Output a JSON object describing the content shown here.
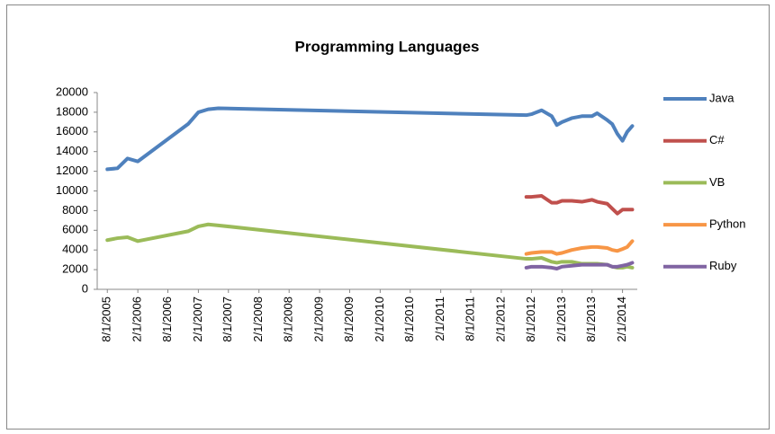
{
  "chart_data": {
    "type": "line",
    "title": "Programming Languages",
    "x": [
      "8/1/2005",
      "10/1/2005",
      "12/1/2005",
      "2/1/2006",
      "12/1/2006",
      "2/1/2007",
      "4/1/2007",
      "6/1/2007",
      "7/1/2012",
      "8/1/2012",
      "10/1/2012",
      "12/1/2012",
      "1/1/2013",
      "2/1/2013",
      "4/1/2013",
      "6/1/2013",
      "8/1/2013",
      "9/1/2013",
      "11/1/2013",
      "12/1/2013",
      "1/1/2014",
      "2/1/2014",
      "3/1/2014",
      "4/1/2014"
    ],
    "series": [
      {
        "name": "Java",
        "color": "#4f81bd",
        "values": [
          12200,
          12300,
          13300,
          13000,
          16800,
          18000,
          18300,
          18400,
          17700,
          17800,
          18200,
          17600,
          16700,
          17000,
          17400,
          17600,
          17600,
          17900,
          17200,
          16800,
          15800,
          15100,
          16000,
          16600
        ]
      },
      {
        "name": "C#",
        "color": "#c0504d",
        "values": [
          null,
          null,
          null,
          null,
          null,
          null,
          null,
          null,
          9400,
          9400,
          9500,
          8800,
          8800,
          9000,
          9000,
          8900,
          9100,
          8900,
          8700,
          8200,
          7700,
          8100,
          8100,
          8100
        ]
      },
      {
        "name": "VB",
        "color": "#9bbb59",
        "values": [
          5000,
          5200,
          5300,
          4900,
          5900,
          6400,
          6600,
          6500,
          3100,
          3100,
          3200,
          2800,
          2700,
          2800,
          2800,
          2600,
          2600,
          2600,
          2500,
          2300,
          2200,
          2200,
          2300,
          2200
        ]
      },
      {
        "name": "Python",
        "color": "#f79646",
        "values": [
          null,
          null,
          null,
          null,
          null,
          null,
          null,
          null,
          3600,
          3700,
          3800,
          3800,
          3600,
          3700,
          4000,
          4200,
          4300,
          4300,
          4200,
          4000,
          3900,
          4100,
          4300,
          4900
        ]
      },
      {
        "name": "Ruby",
        "color": "#8064a2",
        "values": [
          null,
          null,
          null,
          null,
          null,
          null,
          null,
          null,
          2200,
          2300,
          2300,
          2200,
          2100,
          2300,
          2400,
          2500,
          2500,
          2500,
          2500,
          2300,
          2300,
          2400,
          2500,
          2700
        ]
      }
    ],
    "xlim": [
      "6/1/2005",
      "5/1/2014"
    ],
    "xticks": [
      "8/1/2005",
      "2/1/2006",
      "8/1/2006",
      "2/1/2007",
      "8/1/2007",
      "2/1/2008",
      "8/1/2008",
      "2/1/2009",
      "8/1/2009",
      "2/1/2010",
      "8/1/2010",
      "2/1/2011",
      "8/1/2011",
      "2/1/2012",
      "8/1/2012",
      "2/1/2013",
      "8/1/2013",
      "2/1/2014"
    ],
    "ylim": [
      0,
      20000
    ],
    "yticks": [
      0,
      2000,
      4000,
      6000,
      8000,
      10000,
      12000,
      14000,
      16000,
      18000,
      20000
    ],
    "legend": "right"
  }
}
